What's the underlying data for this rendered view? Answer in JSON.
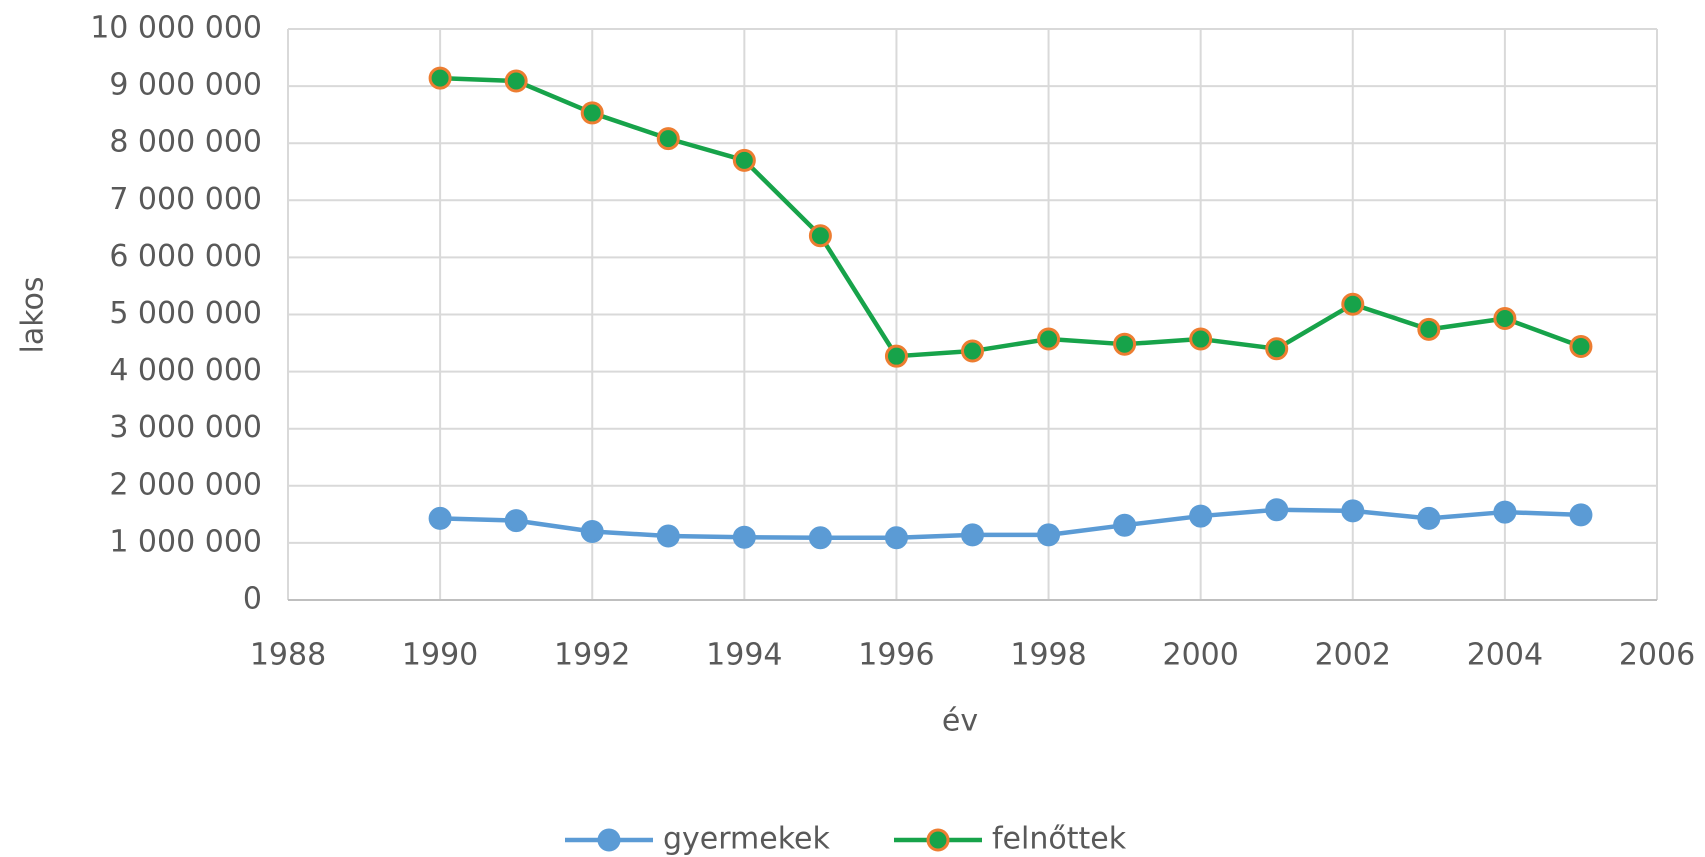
{
  "chart_data": {
    "type": "line",
    "xlabel": "év",
    "ylabel": "lakos",
    "x": [
      1990,
      1991,
      1992,
      1993,
      1994,
      1995,
      1996,
      1997,
      1998,
      1999,
      2000,
      2001,
      2002,
      2003,
      2004,
      2005
    ],
    "series": [
      {
        "name": "gyermekek",
        "color": "#5b9bd5",
        "marker_edgecolor": "#5b9bd5",
        "values": [
          1430000,
          1390000,
          1200000,
          1120000,
          1100000,
          1090000,
          1090000,
          1140000,
          1140000,
          1310000,
          1470000,
          1580000,
          1560000,
          1430000,
          1540000,
          1490000
        ]
      },
      {
        "name": "felnőttek",
        "color": "#17a34a",
        "marker_edgecolor": "#ed7d31",
        "values": [
          9140000,
          9090000,
          8530000,
          8080000,
          7700000,
          6380000,
          4270000,
          4360000,
          4570000,
          4480000,
          4570000,
          4400000,
          5180000,
          4740000,
          4930000,
          4440000
        ]
      }
    ],
    "xlim": [
      1988,
      2006
    ],
    "xticks": [
      1988,
      1990,
      1992,
      1994,
      1996,
      1998,
      2000,
      2002,
      2004,
      2006
    ],
    "ylim": [
      0,
      10000000
    ],
    "yticks": [
      0,
      {
        "value": 1000000,
        "label": "1 000 000"
      },
      {
        "value": 2000000,
        "label": "2 000 000"
      },
      {
        "value": 3000000,
        "label": "3 000 000"
      },
      {
        "value": 4000000,
        "label": "4 000 000"
      },
      {
        "value": 5000000,
        "label": "5 000 000"
      },
      {
        "value": 6000000,
        "label": "6 000 000"
      },
      {
        "value": 7000000,
        "label": "7 000 000"
      },
      {
        "value": 8000000,
        "label": "8 000 000"
      },
      {
        "value": 9000000,
        "label": "9 000 000"
      },
      {
        "value": 10000000,
        "label": "10 000 000"
      }
    ],
    "grid": true,
    "legend": "bottom"
  }
}
